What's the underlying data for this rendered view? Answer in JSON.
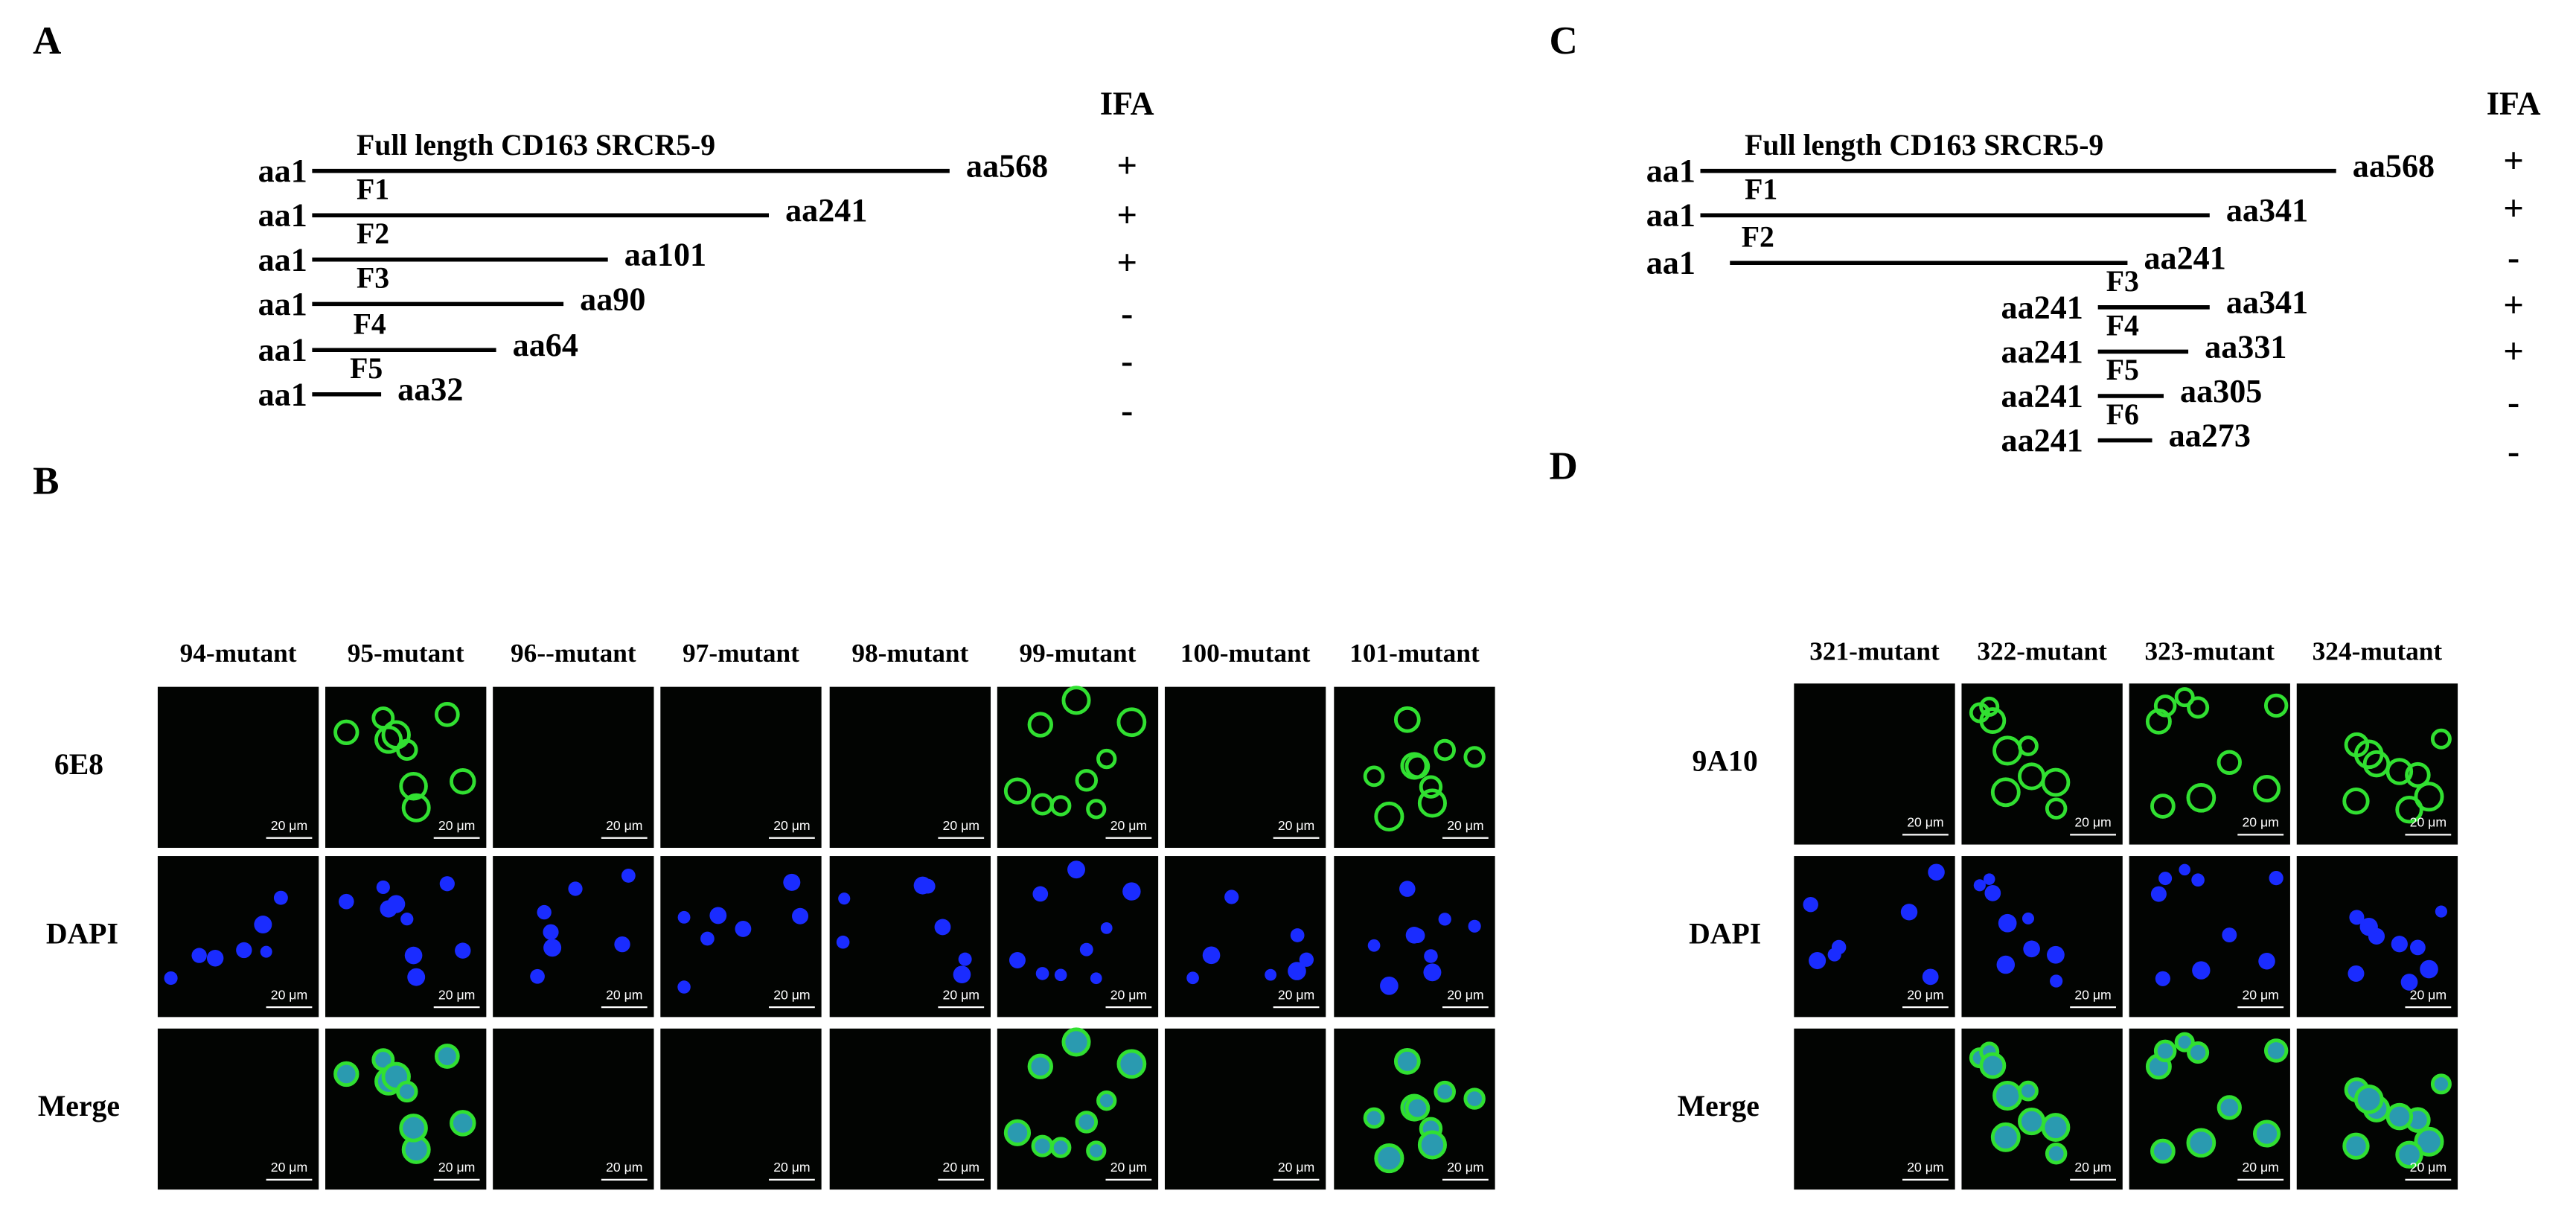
{
  "panel_a": {
    "label": "A",
    "ifa_header": "IFA",
    "constructs": [
      {
        "name": "Full length CD163 SRCR5-9",
        "start": "aa1",
        "end": "aa568",
        "ifa": "+"
      },
      {
        "name": "F1",
        "start": "aa1",
        "end": "aa241",
        "ifa": "+"
      },
      {
        "name": "F2",
        "start": "aa1",
        "end": "aa101",
        "ifa": "+"
      },
      {
        "name": "F3",
        "start": "aa1",
        "end": "aa90",
        "ifa": "-"
      },
      {
        "name": "F4",
        "start": "aa1",
        "end": "aa64",
        "ifa": "-"
      },
      {
        "name": "F5",
        "start": "aa1",
        "end": "aa32",
        "ifa": "-"
      }
    ]
  },
  "panel_b": {
    "label": "B",
    "columns": [
      "94-mutant",
      "95-mutant",
      "96--mutant",
      "97-mutant",
      "98-mutant",
      "99-mutant",
      "100-mutant",
      "101-mutant"
    ],
    "rows": [
      "6E8",
      "DAPI",
      "Merge"
    ],
    "scale_bar": "20 μm"
  },
  "panel_c": {
    "label": "C",
    "ifa_header": "IFA",
    "constructs": [
      {
        "name": "Full length CD163 SRCR5-9",
        "start": "aa1",
        "end": "aa568",
        "ifa": "+"
      },
      {
        "name": "F1",
        "start": "aa1",
        "end": "aa341",
        "ifa": "+"
      },
      {
        "name": "F2",
        "start": "aa1",
        "end": "aa241",
        "ifa": "-"
      },
      {
        "name": "F3",
        "start": "aa241",
        "end": "aa341",
        "ifa": "+"
      },
      {
        "name": "F4",
        "start": "aa241",
        "end": "aa331",
        "ifa": "+"
      },
      {
        "name": "F5",
        "start": "aa241",
        "end": "aa305",
        "ifa": "-"
      },
      {
        "name": "F6",
        "start": "aa241",
        "end": "aa273",
        "ifa": "-"
      }
    ]
  },
  "panel_d": {
    "label": "D",
    "columns": [
      "321-mutant",
      "322-mutant",
      "323-mutant",
      "324-mutant"
    ],
    "rows": [
      "9A10",
      "DAPI",
      "Merge"
    ],
    "scale_bar": "20 μm"
  }
}
